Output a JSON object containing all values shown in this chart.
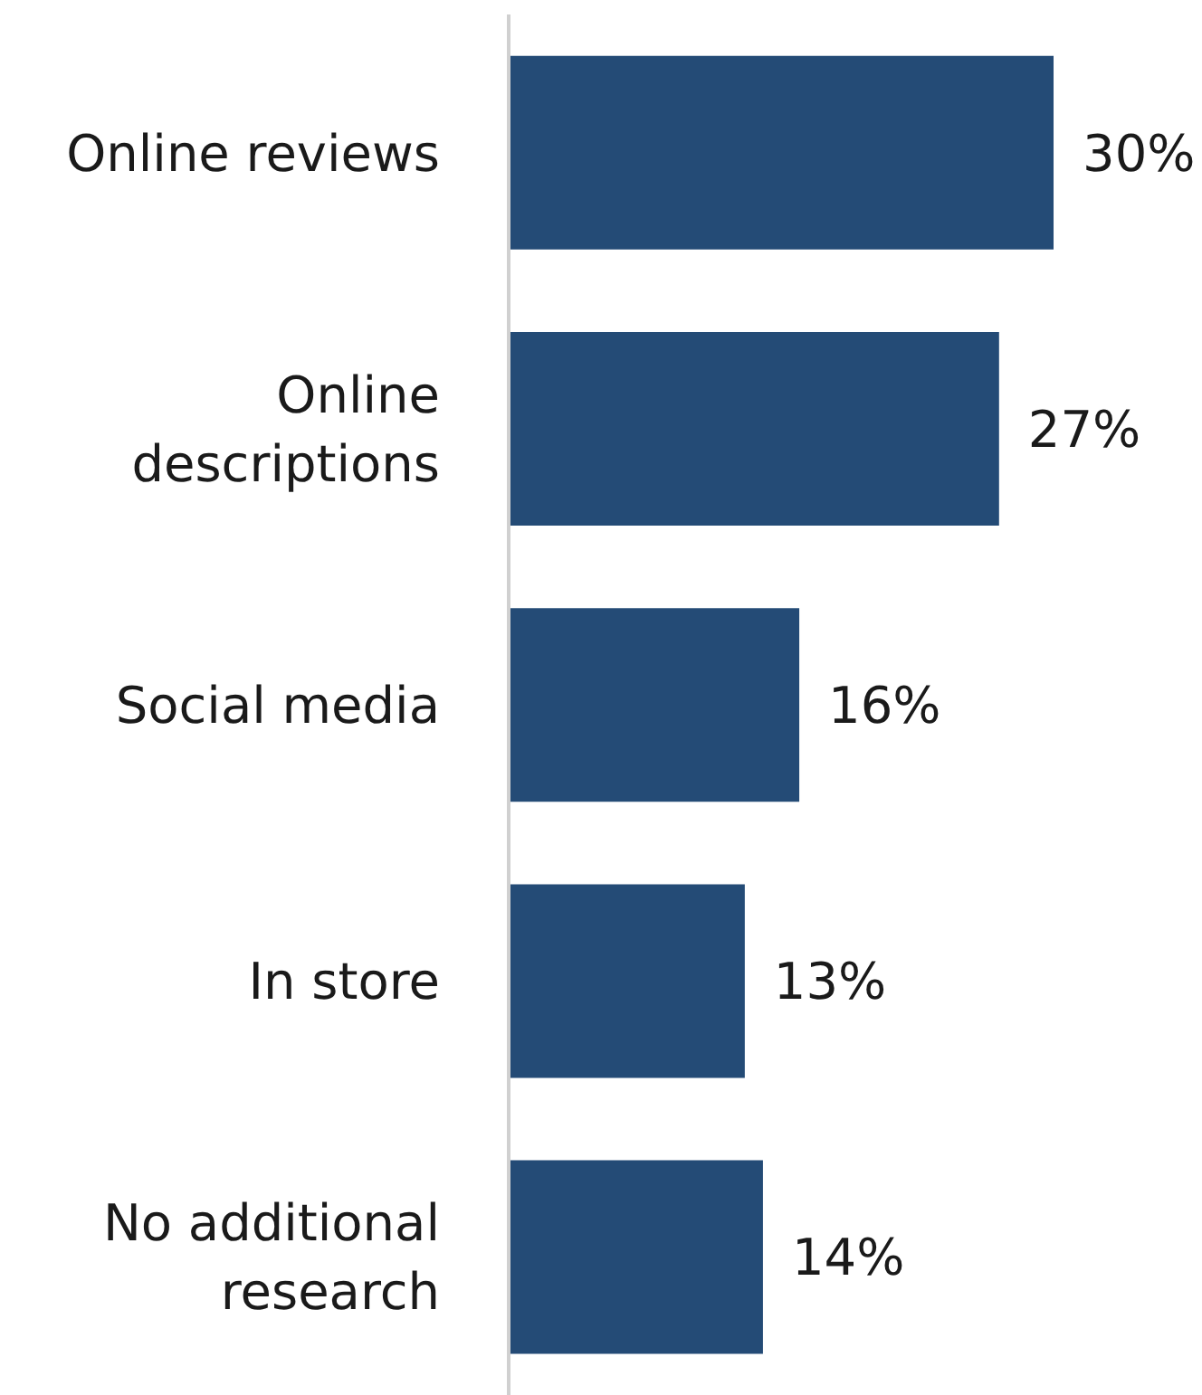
{
  "chart_data": {
    "type": "bar",
    "orientation": "horizontal",
    "categories": [
      "Online reviews",
      "Online descriptions",
      "Social media",
      "In store",
      "No additional research"
    ],
    "values": [
      30,
      27,
      16,
      13,
      14
    ],
    "color": "#244b76",
    "value_labels": [
      "30%",
      "27%",
      "16%",
      "13%",
      "14%"
    ],
    "grid": false,
    "legend": false
  }
}
